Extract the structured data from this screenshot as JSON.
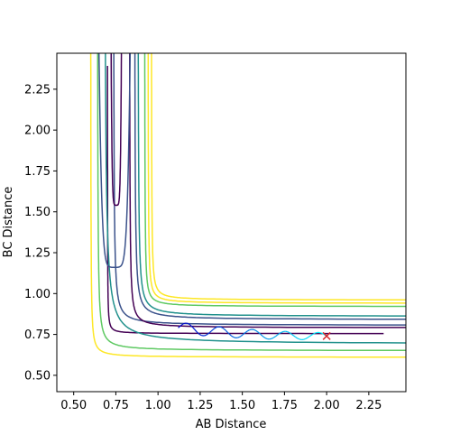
{
  "chart_data": {
    "type": "line",
    "title": "",
    "xlabel": "AB Distance",
    "ylabel": "BC Distance",
    "xlim": [
      0.4,
      2.47
    ],
    "ylim": [
      0.4,
      2.47
    ],
    "xticks": [
      "0.50",
      "0.75",
      "1.00",
      "1.25",
      "1.50",
      "1.75",
      "2.00",
      "2.25"
    ],
    "yticks": [
      "0.50",
      "0.75",
      "1.00",
      "1.25",
      "1.50",
      "1.75",
      "2.00",
      "2.25"
    ],
    "grid": false,
    "legend": "none",
    "contour_levels": [
      {
        "color": "#440154",
        "x_asym": 0.7,
        "y_asym": 0.755,
        "curv": 0.03
      },
      {
        "color": "#3b528b",
        "x_asym": 0.735,
        "y_asym": 0.805,
        "curv": 0.07
      },
      {
        "color": "#21918c",
        "x_asym": 0.68,
        "y_asym": 0.69,
        "curv": 0.12
      },
      {
        "color": "#5ec962",
        "x_asym": 0.64,
        "y_asym": 0.65,
        "curv": 0.065
      },
      {
        "color": "#fde725",
        "x_asym": 0.6,
        "y_asym": 0.61,
        "curv": 0.05
      }
    ],
    "contour_upper_branches": [
      {
        "color": "#440154",
        "x_right": 0.83,
        "y_limit": 0.79,
        "curv": 0.06
      },
      {
        "color": "#3b528b",
        "x_right": 0.86,
        "y_limit": 0.84,
        "curv": 0.07
      },
      {
        "color": "#21918c",
        "x_right": 0.88,
        "y_limit": 0.86,
        "curv": 0.07
      },
      {
        "color": "#5ec962",
        "x_right": 0.92,
        "y_limit": 0.92,
        "curv": 0.05
      },
      {
        "color": "#fde725",
        "x_right": 0.94,
        "y_limit": 0.94,
        "curv": 0.05
      },
      {
        "color": "#fde725",
        "x_right": 0.96,
        "y_limit": 0.96,
        "curv": 0.05
      }
    ],
    "well_contours": [
      {
        "color": "#440154",
        "x_left": 0.715,
        "x_right": 0.79,
        "y_bottom": 1.54
      },
      {
        "color": "#3b528b",
        "x_left": 0.635,
        "x_right": 0.85,
        "y_bottom": 1.16
      }
    ],
    "trajectory": {
      "start": [
        2.0,
        0.74
      ],
      "end": [
        1.12,
        0.79
      ],
      "color_start": "#00ffff",
      "color_end": "#0000cd"
    },
    "marker": {
      "x": 2.0,
      "y": 0.74,
      "symbol": "x",
      "color": "#d62728"
    }
  }
}
